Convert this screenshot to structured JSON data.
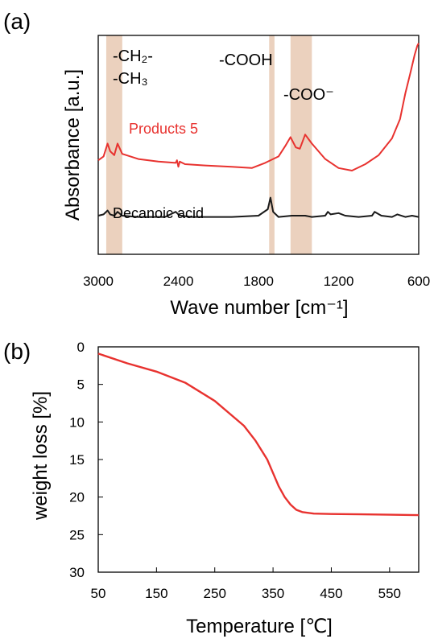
{
  "chart_data": [
    {
      "panel": "(a)",
      "type": "line",
      "xlabel": "Wave number [cm⁻¹]",
      "ylabel": "Absorbance [a.u.]",
      "x_reversed": true,
      "xlim": [
        3000,
        600
      ],
      "x_ticks": [
        "3000",
        "2400",
        "1800",
        "1200",
        "600"
      ],
      "y_ticks": [],
      "highlight_bands": [
        [
          2940,
          2820
        ],
        [
          1720,
          1680
        ],
        [
          1560,
          1400
        ]
      ],
      "annotations": {
        "ch2": "-CH₂-",
        "ch3": "-CH₃",
        "cooh": "-COOH",
        "coo": "-COO⁻"
      },
      "series": [
        {
          "name": "Products 5",
          "color": "#e8322f",
          "x": [
            3000,
            2960,
            2930,
            2910,
            2880,
            2855,
            2820,
            2700,
            2550,
            2420,
            2410,
            2400,
            2390,
            2350,
            2200,
            2000,
            1850,
            1750,
            1650,
            1600,
            1560,
            1520,
            1490,
            1450,
            1400,
            1300,
            1200,
            1100,
            1000,
            900,
            800,
            740,
            700,
            660,
            630,
            610,
            600
          ],
          "y": [
            0.73,
            0.76,
            0.86,
            0.8,
            0.77,
            0.86,
            0.78,
            0.74,
            0.72,
            0.71,
            0.73,
            0.68,
            0.72,
            0.7,
            0.69,
            0.68,
            0.67,
            0.71,
            0.76,
            0.84,
            0.91,
            0.83,
            0.82,
            0.93,
            0.86,
            0.74,
            0.67,
            0.65,
            0.7,
            0.77,
            0.9,
            1.05,
            1.25,
            1.42,
            1.55,
            1.62,
            1.64
          ]
        },
        {
          "name": "Decanoic acid",
          "color": "#1a1a1a",
          "x": [
            3000,
            2960,
            2930,
            2910,
            2880,
            2855,
            2820,
            2700,
            2500,
            2420,
            2400,
            2380,
            2300,
            2000,
            1800,
            1730,
            1710,
            1690,
            1650,
            1550,
            1450,
            1400,
            1300,
            1280,
            1260,
            1200,
            1150,
            1050,
            950,
            930,
            880,
            800,
            760,
            700,
            650,
            600
          ],
          "y": [
            0.3,
            0.31,
            0.34,
            0.31,
            0.3,
            0.33,
            0.3,
            0.29,
            0.29,
            0.33,
            0.31,
            0.3,
            0.29,
            0.29,
            0.3,
            0.35,
            0.44,
            0.33,
            0.29,
            0.3,
            0.3,
            0.29,
            0.3,
            0.33,
            0.31,
            0.32,
            0.3,
            0.29,
            0.3,
            0.33,
            0.3,
            0.29,
            0.31,
            0.29,
            0.3,
            0.29
          ]
        }
      ]
    },
    {
      "panel": "(b)",
      "type": "line",
      "xlabel": "Temperature [℃]",
      "ylabel": "weight loss [%]",
      "xlim": [
        50,
        600
      ],
      "ylim": [
        0,
        30
      ],
      "y_reversed": true,
      "x_ticks": [
        "50",
        "150",
        "250",
        "350",
        "450",
        "550"
      ],
      "y_ticks": [
        "0",
        "5",
        "10",
        "15",
        "20",
        "25",
        "30"
      ],
      "series": [
        {
          "color": "#e8322f",
          "x": [
            50,
            100,
            150,
            200,
            250,
            300,
            320,
            340,
            350,
            360,
            370,
            380,
            390,
            400,
            420,
            450,
            500,
            550,
            600
          ],
          "y": [
            0.9,
            2.2,
            3.3,
            4.8,
            7.2,
            10.5,
            12.5,
            15.0,
            16.8,
            18.6,
            20.0,
            21.0,
            21.7,
            22.0,
            22.2,
            22.25,
            22.3,
            22.35,
            22.4
          ]
        }
      ]
    }
  ]
}
